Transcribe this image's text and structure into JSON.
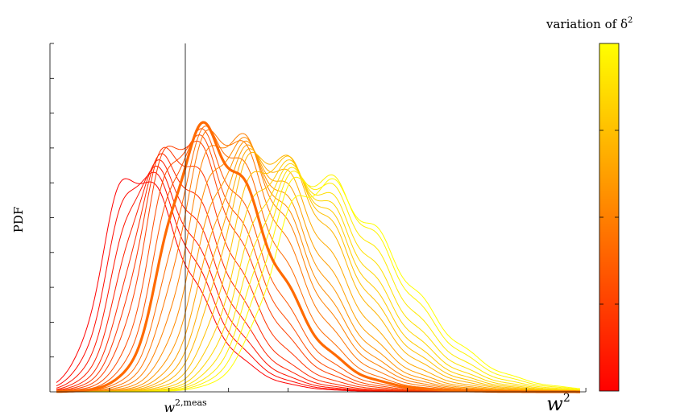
{
  "chart_data": {
    "type": "line",
    "title": "",
    "xlabel": "w²",
    "ylabel": "PDF",
    "x_marker_label": "w",
    "x_marker_sup": "2,meas",
    "xlabel_base": "w",
    "xlabel_sup": "2",
    "grid": false,
    "legend": "none",
    "colorbar": {
      "label_text": "variation of δ",
      "label_base": "variation of δ",
      "label_sup": "2",
      "colors": [
        "#ff0000",
        "#ff8000",
        "#ffff00"
      ]
    },
    "highlighted_series_index": 9,
    "series_count": 25,
    "colors": {
      "axis": "#000000",
      "low": "#ff0000",
      "high": "#ffff00",
      "highlight": "#ff6a00"
    }
  }
}
